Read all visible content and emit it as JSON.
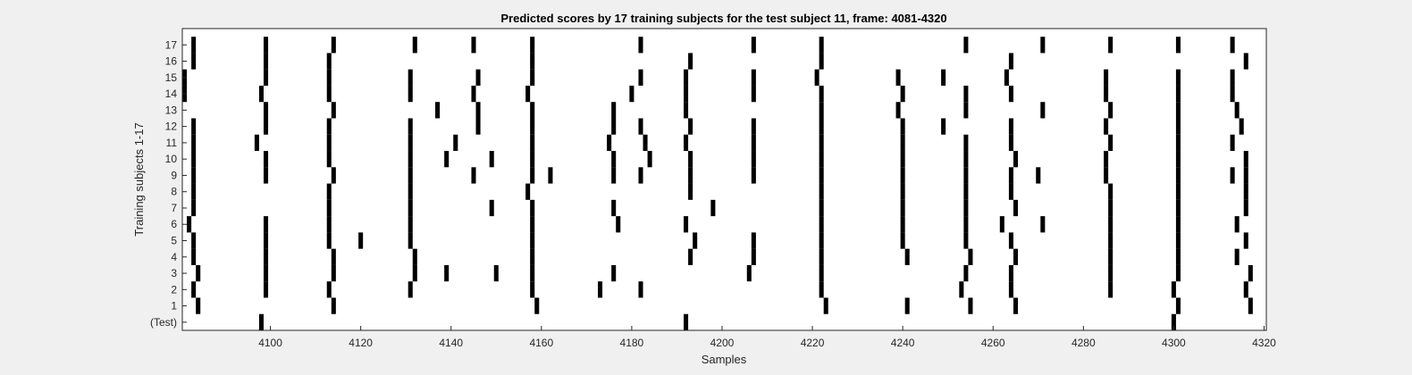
{
  "chart_data": {
    "type": "heatmap",
    "title": "Predicted scores by 17 training subjects for the test subject 11, frame: 4081-4320",
    "xlabel": "Samples",
    "ylabel": "Training subjects 1-17",
    "xlim": [
      4081,
      4320
    ],
    "xticks": [
      4100,
      4120,
      4140,
      4160,
      4180,
      4200,
      4220,
      4240,
      4260,
      4280,
      4300,
      4320
    ],
    "row_labels": [
      "17",
      "16",
      "15",
      "14",
      "13",
      "12",
      "11",
      "10",
      "9",
      "8",
      "7",
      "6",
      "5",
      "4",
      "3",
      "2",
      "1",
      "(Test)"
    ],
    "cell_color": "#000000",
    "background_color": "#ffffff",
    "rows": [
      {
        "label": "17",
        "x": [
          4083,
          4099,
          4114,
          4132,
          4145,
          4158,
          4182,
          4207,
          4222,
          4254,
          4271,
          4286,
          4301,
          4313
        ]
      },
      {
        "label": "16",
        "x": [
          4083,
          4099,
          4113,
          4158,
          4193,
          4222,
          4264,
          4316
        ]
      },
      {
        "label": "15",
        "x": [
          4081,
          4099,
          4113,
          4131,
          4146,
          4158,
          4182,
          4192,
          4207,
          4221,
          4239,
          4249,
          4263,
          4285,
          4301,
          4313
        ]
      },
      {
        "label": "14",
        "x": [
          4081,
          4098,
          4113,
          4131,
          4145,
          4157,
          4180,
          4192,
          4207,
          4222,
          4240,
          4254,
          4264,
          4285,
          4301,
          4313
        ]
      },
      {
        "label": "13",
        "x": [
          4099,
          4114,
          4137,
          4146,
          4158,
          4176,
          4192,
          4222,
          4239,
          4254,
          4271,
          4286,
          4301,
          4314
        ]
      },
      {
        "label": "12",
        "x": [
          4083,
          4099,
          4113,
          4131,
          4146,
          4158,
          4176,
          4182,
          4193,
          4207,
          4222,
          4240,
          4249,
          4264,
          4285,
          4301,
          4315
        ]
      },
      {
        "label": "11",
        "x": [
          4083,
          4097,
          4113,
          4131,
          4141,
          4158,
          4175,
          4183,
          4192,
          4207,
          4222,
          4240,
          4254,
          4264,
          4286,
          4301,
          4313
        ]
      },
      {
        "label": "10",
        "x": [
          4083,
          4099,
          4113,
          4131,
          4139,
          4149,
          4158,
          4176,
          4184,
          4193,
          4207,
          4222,
          4240,
          4254,
          4265,
          4285,
          4301,
          4316
        ]
      },
      {
        "label": "9",
        "x": [
          4083,
          4099,
          4114,
          4131,
          4145,
          4158,
          4162,
          4176,
          4182,
          4193,
          4207,
          4222,
          4240,
          4254,
          4264,
          4270,
          4285,
          4301,
          4313,
          4316
        ]
      },
      {
        "label": "8",
        "x": [
          4083,
          4113,
          4131,
          4157,
          4193,
          4222,
          4240,
          4254,
          4264,
          4286,
          4301,
          4316
        ]
      },
      {
        "label": "7",
        "x": [
          4083,
          4113,
          4131,
          4149,
          4158,
          4176,
          4198,
          4222,
          4240,
          4254,
          4265,
          4286,
          4301,
          4316
        ]
      },
      {
        "label": "6",
        "x": [
          4082,
          4099,
          4113,
          4131,
          4158,
          4177,
          4192,
          4222,
          4240,
          4254,
          4262,
          4271,
          4286,
          4301,
          4314
        ]
      },
      {
        "label": "5",
        "x": [
          4083,
          4099,
          4113,
          4120,
          4131,
          4158,
          4194,
          4207,
          4222,
          4240,
          4254,
          4264,
          4286,
          4301,
          4316
        ]
      },
      {
        "label": "4",
        "x": [
          4083,
          4099,
          4114,
          4132,
          4158,
          4193,
          4207,
          4222,
          4241,
          4255,
          4265,
          4286,
          4301,
          4314
        ]
      },
      {
        "label": "3",
        "x": [
          4084,
          4099,
          4114,
          4132,
          4139,
          4150,
          4158,
          4176,
          4206,
          4222,
          4254,
          4264,
          4286,
          4301,
          4317
        ]
      },
      {
        "label": "2",
        "x": [
          4083,
          4099,
          4113,
          4131,
          4158,
          4173,
          4182,
          4222,
          4253,
          4264,
          4286,
          4300,
          4316
        ]
      },
      {
        "label": "1",
        "x": [
          4084,
          4114,
          4159,
          4223,
          4241,
          4255,
          4265,
          4301,
          4317
        ]
      },
      {
        "label": "(Test)",
        "x": [
          4098,
          4192,
          4300
        ]
      }
    ]
  }
}
